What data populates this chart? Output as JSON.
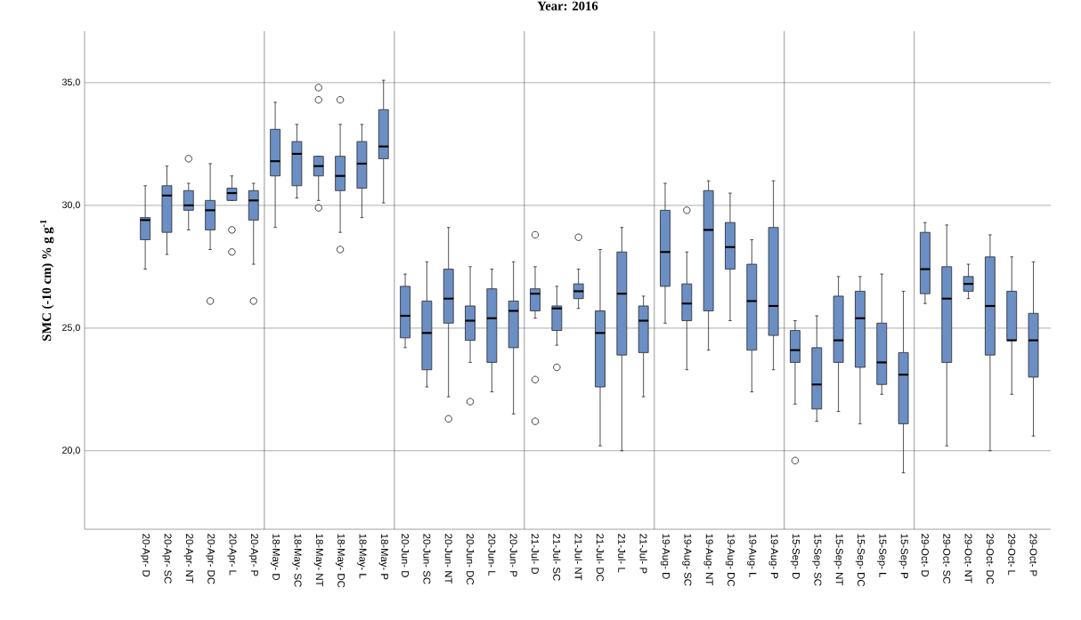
{
  "chart_data": {
    "type": "box",
    "title": "Year: 2016",
    "ylabel": "SMC (-10 cm) % g g$^{-1}$",
    "categories": [
      "20-Apr- D",
      "20-Apr- SC",
      "20-Apr- NT",
      "20-Apr- DC",
      "20-Apr- L",
      "20-Apr- P",
      "18-May- D",
      "18-May- SC",
      "18-May- NT",
      "18-May- DC",
      "18-May- L",
      "18-May- P",
      "20-Jun- D",
      "20-Jun- SC",
      "20-Jun- NT",
      "20-Jun- DC",
      "20-Jun- L",
      "20-Jun- P",
      "21-Jul- D",
      "21-Jul- SC",
      "21-Jul- NT",
      "21-Jul- DC",
      "21-Jul- L",
      "21-Jul- P",
      "19-Aug- D",
      "19-Aug- SC",
      "19-Aug- NT",
      "19-Aug- DC",
      "19-Aug- L",
      "19-Aug- P",
      "15-Sep- D",
      "15-Sep- SC",
      "15-Sep- NT",
      "15-Sep- DC",
      "15-Sep- L",
      "15-Sep- P",
      "29-Oct- D",
      "29-Oct- SC",
      "29-Oct- NT",
      "29-Oct- DC",
      "29-Oct- L",
      "29-Oct- P"
    ],
    "color": "#6b8fc4",
    "boxes": [
      {
        "low": 27.4,
        "q1": 28.6,
        "median": 29.4,
        "q3": 29.5,
        "high": 30.8
      },
      {
        "low": 28.0,
        "q1": 28.9,
        "median": 30.4,
        "q3": 30.8,
        "high": 31.6
      },
      {
        "low": 29.0,
        "q1": 29.8,
        "median": 30.0,
        "q3": 30.6,
        "high": 30.9,
        "outliers": [
          31.9
        ]
      },
      {
        "low": 28.2,
        "q1": 29.0,
        "median": 29.8,
        "q3": 30.2,
        "high": 31.7,
        "outliers": [
          26.1
        ]
      },
      {
        "low": 30.2,
        "q1": 30.2,
        "median": 30.5,
        "q3": 30.7,
        "high": 31.2,
        "outliers": [
          29.0,
          28.1
        ]
      },
      {
        "low": 27.6,
        "q1": 29.4,
        "median": 30.2,
        "q3": 30.6,
        "high": 30.9,
        "outliers": [
          26.1
        ]
      },
      {
        "low": 29.1,
        "q1": 31.2,
        "median": 31.8,
        "q3": 33.1,
        "high": 34.2
      },
      {
        "low": 30.3,
        "q1": 30.8,
        "median": 32.1,
        "q3": 32.6,
        "high": 33.3
      },
      {
        "low": 30.2,
        "q1": 31.2,
        "median": 31.6,
        "q3": 32.0,
        "high": 32.0,
        "outliers": [
          34.3,
          34.8,
          29.9
        ]
      },
      {
        "low": 28.9,
        "q1": 30.6,
        "median": 31.2,
        "q3": 32.0,
        "high": 33.3,
        "outliers": [
          34.3,
          28.2
        ]
      },
      {
        "low": 29.5,
        "q1": 30.7,
        "median": 31.7,
        "q3": 32.6,
        "high": 33.3
      },
      {
        "low": 30.1,
        "q1": 31.9,
        "median": 32.4,
        "q3": 33.9,
        "high": 35.1
      },
      {
        "low": 24.2,
        "q1": 24.6,
        "median": 25.5,
        "q3": 26.7,
        "high": 27.2
      },
      {
        "low": 22.6,
        "q1": 23.3,
        "median": 24.8,
        "q3": 26.1,
        "high": 27.7
      },
      {
        "low": 22.2,
        "q1": 25.2,
        "median": 26.2,
        "q3": 27.4,
        "high": 29.1,
        "outliers": [
          21.3
        ]
      },
      {
        "low": 23.6,
        "q1": 24.5,
        "median": 25.3,
        "q3": 25.9,
        "high": 27.5,
        "outliers": [
          22.0
        ]
      },
      {
        "low": 22.4,
        "q1": 23.6,
        "median": 25.4,
        "q3": 26.6,
        "high": 27.4
      },
      {
        "low": 21.5,
        "q1": 24.2,
        "median": 25.7,
        "q3": 26.1,
        "high": 27.7
      },
      {
        "low": 25.4,
        "q1": 25.7,
        "median": 26.4,
        "q3": 26.6,
        "high": 27.5,
        "outliers": [
          28.8,
          22.9,
          21.2
        ]
      },
      {
        "low": 24.3,
        "q1": 24.9,
        "median": 25.8,
        "q3": 25.9,
        "high": 26.7,
        "outliers": [
          23.4
        ]
      },
      {
        "low": 25.8,
        "q1": 26.2,
        "median": 26.5,
        "q3": 26.8,
        "high": 27.4,
        "outliers": [
          28.7
        ]
      },
      {
        "low": 20.2,
        "q1": 22.6,
        "median": 24.8,
        "q3": 25.7,
        "high": 28.2
      },
      {
        "low": 20.0,
        "q1": 23.9,
        "median": 26.4,
        "q3": 28.1,
        "high": 29.1
      },
      {
        "low": 22.2,
        "q1": 24.0,
        "median": 25.3,
        "q3": 25.9,
        "high": 26.3
      },
      {
        "low": 25.2,
        "q1": 26.7,
        "median": 28.1,
        "q3": 29.8,
        "high": 30.9
      },
      {
        "low": 23.3,
        "q1": 25.3,
        "median": 26.0,
        "q3": 26.8,
        "high": 28.1,
        "outliers": [
          29.8
        ]
      },
      {
        "low": 24.1,
        "q1": 25.7,
        "median": 29.0,
        "q3": 30.6,
        "high": 31.0
      },
      {
        "low": 25.3,
        "q1": 27.4,
        "median": 28.3,
        "q3": 29.3,
        "high": 30.5
      },
      {
        "low": 22.4,
        "q1": 24.1,
        "median": 26.1,
        "q3": 27.6,
        "high": 28.6
      },
      {
        "low": 23.3,
        "q1": 24.7,
        "median": 25.9,
        "q3": 29.1,
        "high": 31.0
      },
      {
        "low": 21.9,
        "q1": 23.6,
        "median": 24.1,
        "q3": 24.9,
        "high": 25.3,
        "outliers": [
          19.6
        ]
      },
      {
        "low": 21.2,
        "q1": 21.7,
        "median": 22.7,
        "q3": 24.2,
        "high": 25.5
      },
      {
        "low": 21.6,
        "q1": 23.6,
        "median": 24.5,
        "q3": 26.3,
        "high": 27.1
      },
      {
        "low": 21.1,
        "q1": 23.4,
        "median": 25.4,
        "q3": 26.5,
        "high": 27.1
      },
      {
        "low": 22.3,
        "q1": 22.7,
        "median": 23.6,
        "q3": 25.2,
        "high": 27.2
      },
      {
        "low": 19.1,
        "q1": 21.1,
        "median": 23.1,
        "q3": 24.0,
        "high": 26.5
      },
      {
        "low": 26.0,
        "q1": 26.4,
        "median": 27.4,
        "q3": 28.9,
        "high": 29.3
      },
      {
        "low": 20.2,
        "q1": 23.6,
        "median": 26.2,
        "q3": 27.5,
        "high": 29.2
      },
      {
        "low": 26.2,
        "q1": 26.5,
        "median": 26.8,
        "q3": 27.1,
        "high": 27.6
      },
      {
        "low": 20.0,
        "q1": 23.9,
        "median": 25.9,
        "q3": 27.9,
        "high": 28.8
      },
      {
        "low": 22.3,
        "q1": 24.5,
        "median": 24.5,
        "q3": 26.5,
        "high": 27.9
      },
      {
        "low": 20.6,
        "q1": 23.0,
        "median": 24.5,
        "q3": 25.6,
        "high": 27.7
      }
    ],
    "ylim": [
      16.8,
      37.1
    ],
    "yticks": [
      {
        "value": 20,
        "label": "20,0"
      },
      {
        "value": 25,
        "label": "25,0"
      },
      {
        "value": 30,
        "label": "30,0"
      },
      {
        "value": 35,
        "label": "35,0"
      }
    ],
    "grid": "y"
  }
}
